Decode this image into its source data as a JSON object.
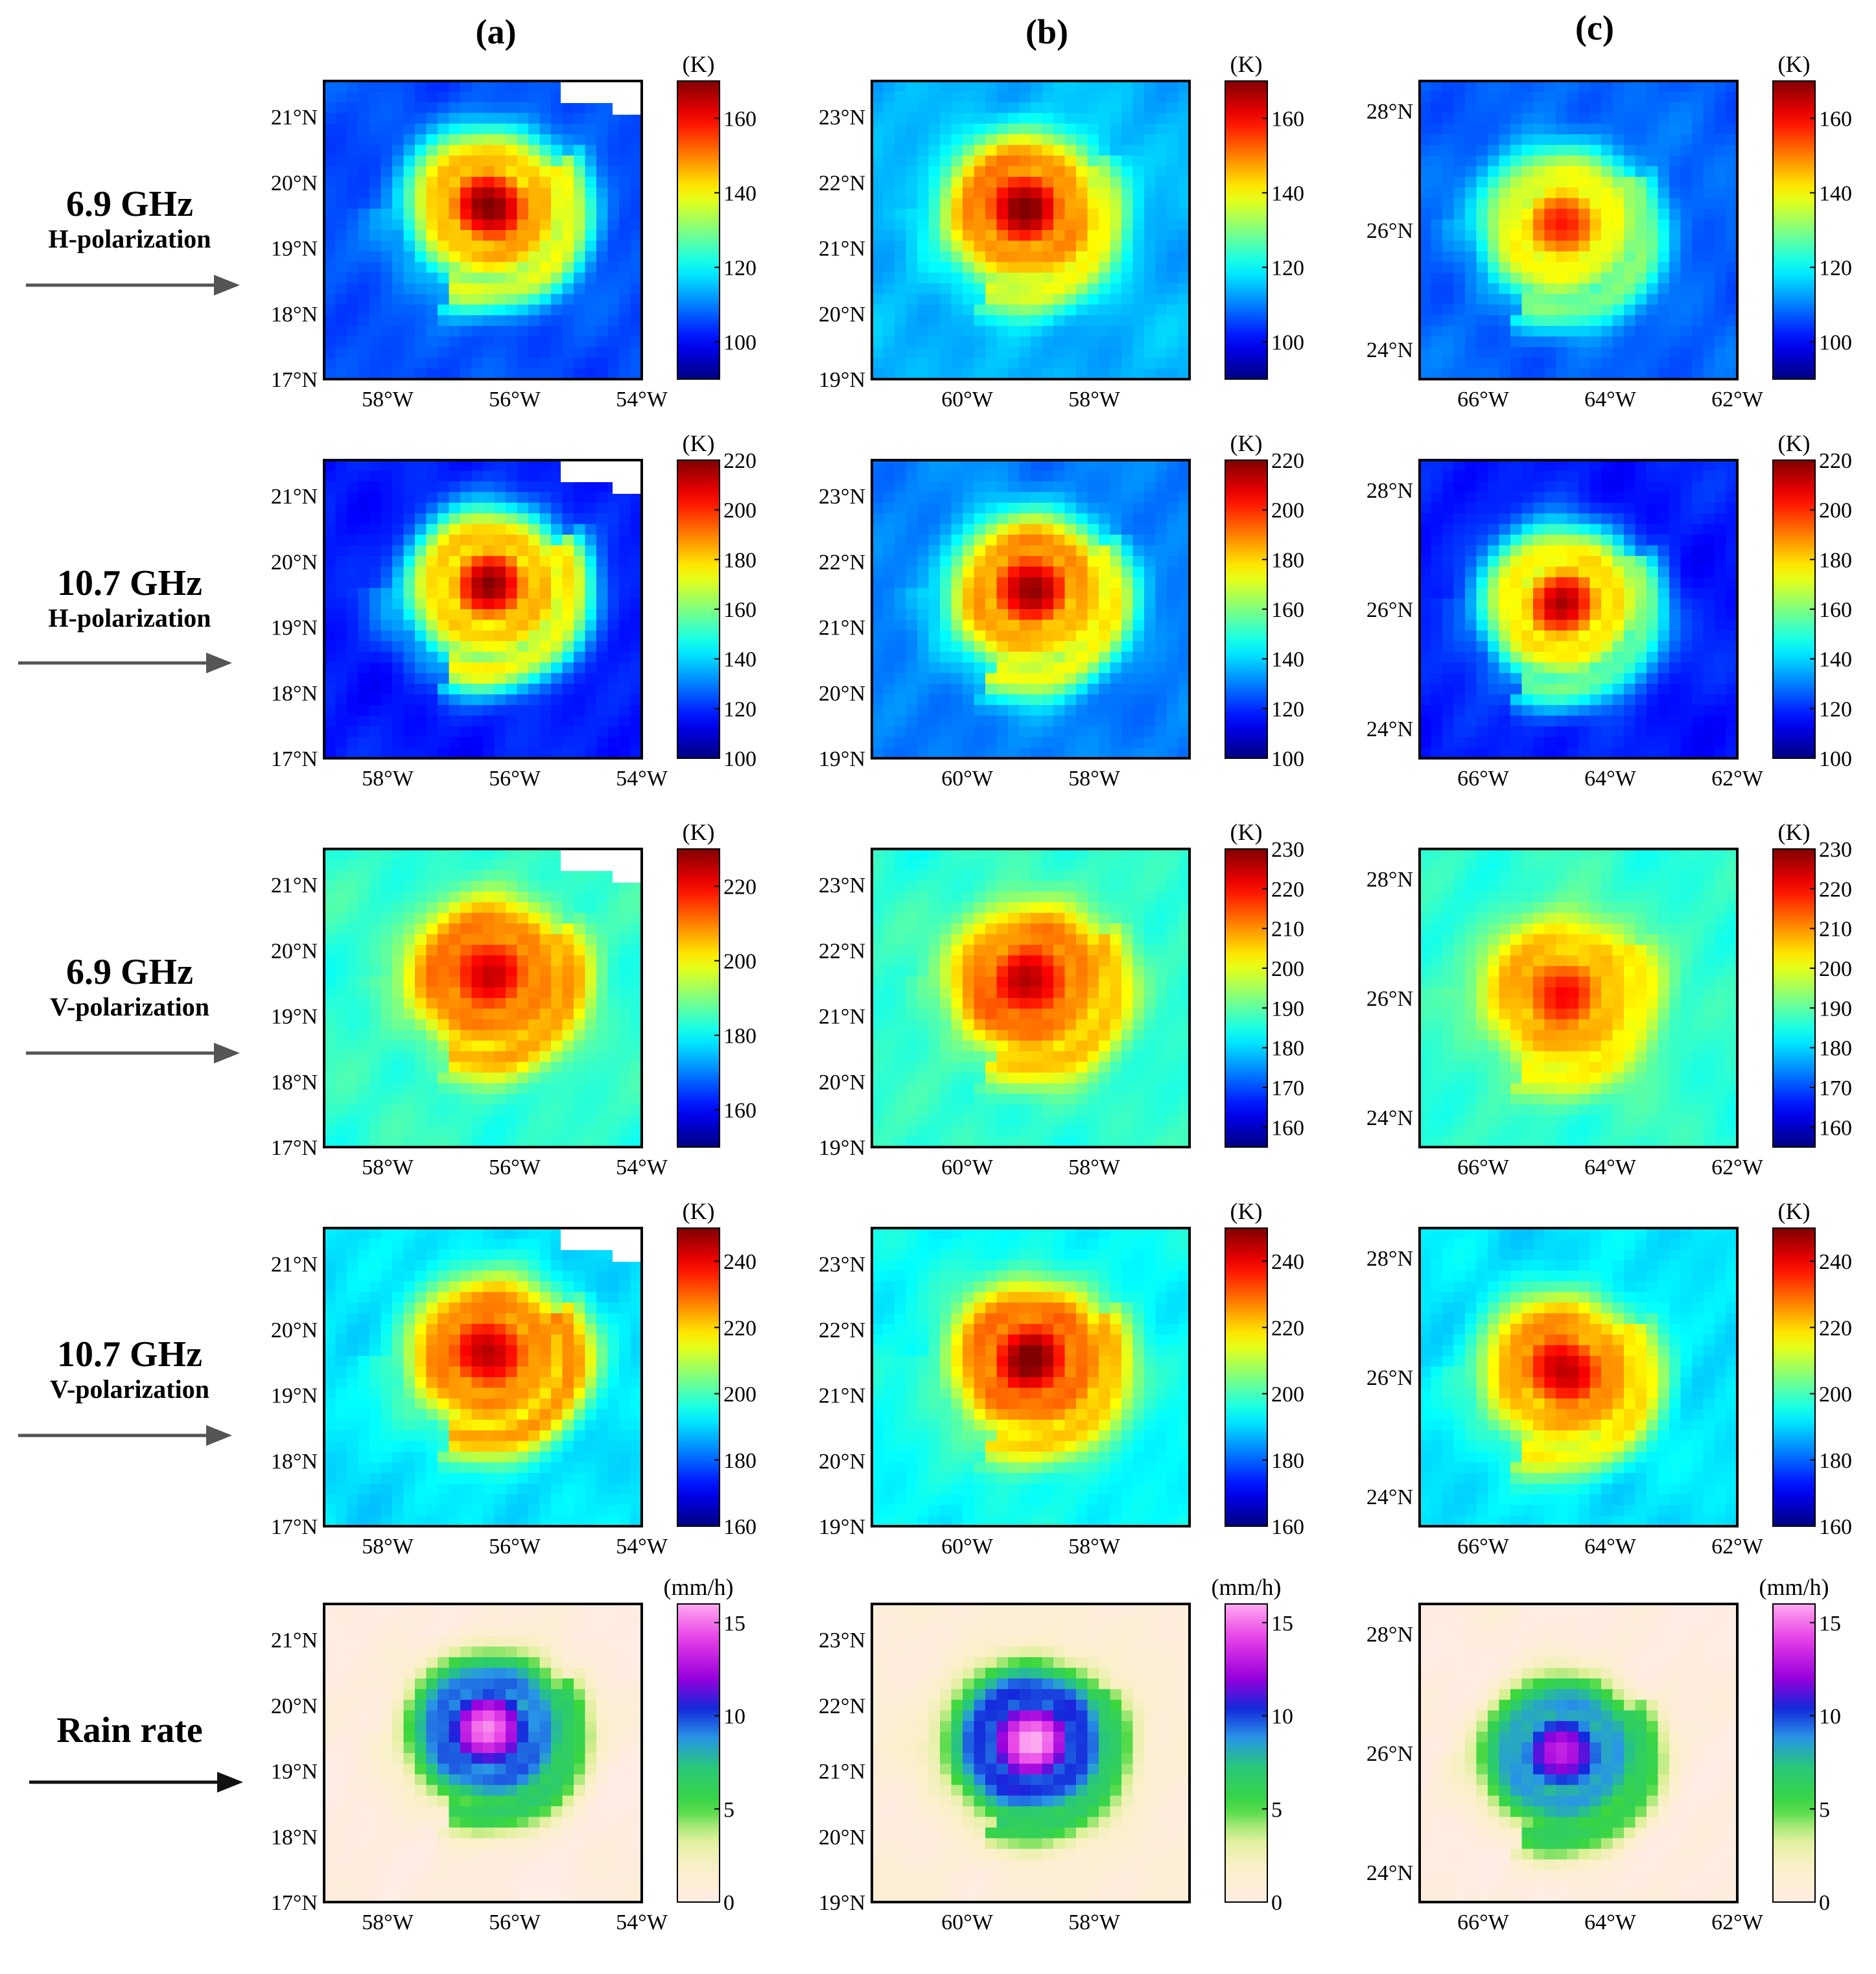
{
  "figure": {
    "columns": [
      "(a)",
      "(b)",
      "(c)"
    ],
    "rows": [
      {
        "title": "6.9 GHz",
        "subtitle": "H-polarization"
      },
      {
        "title": "10.7 GHz",
        "subtitle": "H-polarization"
      },
      {
        "title": "6.9 GHz",
        "subtitle": "V-polarization"
      },
      {
        "title": "10.7 GHz",
        "subtitle": "V-polarization"
      },
      {
        "title": "Rain rate",
        "subtitle": ""
      }
    ]
  },
  "chart_data": [
    {
      "id": "a1",
      "type": "heatmap",
      "column": "(a)",
      "row_title": "6.9 GHz",
      "row_subtitle": "H-polarization",
      "colorbar_unit": "(K)",
      "colorbar_range": [
        90,
        170
      ],
      "colorbar_ticks": [
        "100",
        "120",
        "140",
        "160"
      ],
      "colorbar_tick_values": [
        100,
        120,
        140,
        160
      ],
      "x_ticks": [
        "58°W",
        "56°W",
        "54°W"
      ],
      "y_ticks": [
        "17°N",
        "18°N",
        "19°N",
        "20°N",
        "21°N"
      ],
      "colormap": "jet",
      "storm": {
        "cx": 0.52,
        "cy": 0.42,
        "core": 1.0,
        "arm": 0.75,
        "base": 0.2,
        "extent": 0.42,
        "missing_corner": true
      }
    },
    {
      "id": "b1",
      "type": "heatmap",
      "column": "(b)",
      "row_title": "6.9 GHz",
      "row_subtitle": "H-polarization",
      "colorbar_unit": "(K)",
      "colorbar_range": [
        90,
        170
      ],
      "colorbar_ticks": [
        "100",
        "120",
        "140",
        "160"
      ],
      "colorbar_tick_values": [
        100,
        120,
        140,
        160
      ],
      "x_ticks": [
        "60°W",
        "58°W"
      ],
      "y_ticks": [
        "19°N",
        "20°N",
        "21°N",
        "22°N",
        "23°N"
      ],
      "colormap": "jet",
      "storm": {
        "cx": 0.48,
        "cy": 0.43,
        "core": 1.0,
        "arm": 0.62,
        "base": 0.3,
        "extent": 0.45,
        "missing_corner": false
      }
    },
    {
      "id": "c1",
      "type": "heatmap",
      "column": "(c)",
      "row_title": "6.9 GHz",
      "row_subtitle": "H-polarization",
      "colorbar_unit": "(K)",
      "colorbar_range": [
        90,
        170
      ],
      "colorbar_ticks": [
        "100",
        "120",
        "140",
        "160"
      ],
      "colorbar_tick_values": [
        100,
        120,
        140,
        160
      ],
      "x_ticks": [
        "66°W",
        "64°W",
        "62°W"
      ],
      "y_ticks": [
        "24°N",
        "26°N",
        "28°N"
      ],
      "colormap": "jet",
      "storm": {
        "cx": 0.45,
        "cy": 0.48,
        "core": 0.82,
        "arm": 0.55,
        "base": 0.22,
        "extent": 0.4,
        "missing_corner": false
      }
    },
    {
      "id": "a2",
      "type": "heatmap",
      "column": "(a)",
      "row_title": "10.7 GHz",
      "row_subtitle": "H-polarization",
      "colorbar_unit": "(K)",
      "colorbar_range": [
        100,
        220
      ],
      "colorbar_ticks": [
        "100",
        "120",
        "140",
        "160",
        "180",
        "200",
        "220"
      ],
      "colorbar_tick_values": [
        100,
        120,
        140,
        160,
        180,
        200,
        220
      ],
      "x_ticks": [
        "58°W",
        "56°W",
        "54°W"
      ],
      "y_ticks": [
        "17°N",
        "18°N",
        "19°N",
        "20°N",
        "21°N"
      ],
      "colormap": "jet",
      "storm": {
        "cx": 0.52,
        "cy": 0.42,
        "core": 1.0,
        "arm": 0.8,
        "base": 0.15,
        "extent": 0.45,
        "missing_corner": true
      }
    },
    {
      "id": "b2",
      "type": "heatmap",
      "column": "(b)",
      "row_title": "10.7 GHz",
      "row_subtitle": "H-polarization",
      "colorbar_unit": "(K)",
      "colorbar_range": [
        100,
        220
      ],
      "colorbar_ticks": [
        "100",
        "120",
        "140",
        "160",
        "180",
        "200",
        "220"
      ],
      "colorbar_tick_values": [
        100,
        120,
        140,
        160,
        180,
        200,
        220
      ],
      "x_ticks": [
        "60°W",
        "58°W"
      ],
      "y_ticks": [
        "19°N",
        "20°N",
        "21°N",
        "22°N",
        "23°N"
      ],
      "colormap": "jet",
      "storm": {
        "cx": 0.5,
        "cy": 0.44,
        "core": 1.0,
        "arm": 0.7,
        "base": 0.25,
        "extent": 0.45,
        "missing_corner": false
      }
    },
    {
      "id": "c2",
      "type": "heatmap",
      "column": "(c)",
      "row_title": "10.7 GHz",
      "row_subtitle": "H-polarization",
      "colorbar_unit": "(K)",
      "colorbar_range": [
        100,
        220
      ],
      "colorbar_ticks": [
        "100",
        "120",
        "140",
        "160",
        "180",
        "200",
        "220"
      ],
      "colorbar_tick_values": [
        100,
        120,
        140,
        160,
        180,
        200,
        220
      ],
      "x_ticks": [
        "66°W",
        "64°W",
        "62°W"
      ],
      "y_ticks": [
        "24°N",
        "26°N",
        "28°N"
      ],
      "colormap": "jet",
      "storm": {
        "cx": 0.45,
        "cy": 0.48,
        "core": 0.95,
        "arm": 0.6,
        "base": 0.15,
        "extent": 0.4,
        "missing_corner": false
      }
    },
    {
      "id": "a3",
      "type": "heatmap",
      "column": "(a)",
      "row_title": "6.9 GHz",
      "row_subtitle": "V-polarization",
      "colorbar_unit": "(K)",
      "colorbar_range": [
        150,
        230
      ],
      "colorbar_ticks": [
        "160",
        "180",
        "200",
        "220"
      ],
      "colorbar_tick_values": [
        160,
        180,
        200,
        220
      ],
      "x_ticks": [
        "58°W",
        "56°W",
        "54°W"
      ],
      "y_ticks": [
        "17°N",
        "18°N",
        "19°N",
        "20°N",
        "21°N"
      ],
      "colormap": "jet",
      "storm": {
        "cx": 0.52,
        "cy": 0.42,
        "core": 0.9,
        "arm": 0.7,
        "base": 0.42,
        "extent": 0.45,
        "missing_corner": true
      }
    },
    {
      "id": "b3",
      "type": "heatmap",
      "column": "(b)",
      "row_title": "6.9 GHz",
      "row_subtitle": "V-polarization",
      "colorbar_unit": "(K)",
      "colorbar_range": [
        155,
        230
      ],
      "colorbar_ticks": [
        "160",
        "170",
        "180",
        "190",
        "200",
        "210",
        "220",
        "230"
      ],
      "colorbar_tick_values": [
        160,
        170,
        180,
        190,
        200,
        210,
        220,
        230
      ],
      "x_ticks": [
        "60°W",
        "58°W"
      ],
      "y_ticks": [
        "19°N",
        "20°N",
        "21°N",
        "22°N",
        "23°N"
      ],
      "colormap": "jet",
      "storm": {
        "cx": 0.5,
        "cy": 0.44,
        "core": 0.92,
        "arm": 0.66,
        "base": 0.42,
        "extent": 0.45,
        "missing_corner": false
      }
    },
    {
      "id": "c3",
      "type": "heatmap",
      "column": "(c)",
      "row_title": "6.9 GHz",
      "row_subtitle": "V-polarization",
      "colorbar_unit": "(K)",
      "colorbar_range": [
        155,
        230
      ],
      "colorbar_ticks": [
        "160",
        "170",
        "180",
        "190",
        "200",
        "210",
        "220",
        "230"
      ],
      "colorbar_tick_values": [
        160,
        170,
        180,
        190,
        200,
        210,
        220,
        230
      ],
      "x_ticks": [
        "66°W",
        "64°W",
        "62°W"
      ],
      "y_ticks": [
        "24°N",
        "26°N",
        "28°N"
      ],
      "colormap": "jet",
      "storm": {
        "cx": 0.45,
        "cy": 0.48,
        "core": 0.78,
        "arm": 0.55,
        "base": 0.42,
        "extent": 0.4,
        "missing_corner": false
      }
    },
    {
      "id": "a4",
      "type": "heatmap",
      "column": "(a)",
      "row_title": "10.7 GHz",
      "row_subtitle": "V-polarization",
      "colorbar_unit": "(K)",
      "colorbar_range": [
        160,
        250
      ],
      "colorbar_ticks": [
        "160",
        "180",
        "200",
        "220",
        "240"
      ],
      "colorbar_tick_values": [
        160,
        180,
        200,
        220,
        240
      ],
      "x_ticks": [
        "58°W",
        "56°W",
        "54°W"
      ],
      "y_ticks": [
        "17°N",
        "18°N",
        "19°N",
        "20°N",
        "21°N"
      ],
      "colormap": "jet",
      "storm": {
        "cx": 0.52,
        "cy": 0.42,
        "core": 0.95,
        "arm": 0.8,
        "base": 0.35,
        "extent": 0.47,
        "missing_corner": true
      }
    },
    {
      "id": "b4",
      "type": "heatmap",
      "column": "(b)",
      "row_title": "10.7 GHz",
      "row_subtitle": "V-polarization",
      "colorbar_unit": "(K)",
      "colorbar_range": [
        160,
        250
      ],
      "colorbar_ticks": [
        "160",
        "180",
        "200",
        "220",
        "240"
      ],
      "colorbar_tick_values": [
        160,
        180,
        200,
        220,
        240
      ],
      "x_ticks": [
        "60°W",
        "58°W"
      ],
      "y_ticks": [
        "19°N",
        "20°N",
        "21°N",
        "22°N",
        "23°N"
      ],
      "colormap": "jet",
      "storm": {
        "cx": 0.5,
        "cy": 0.44,
        "core": 1.0,
        "arm": 0.72,
        "base": 0.38,
        "extent": 0.46,
        "missing_corner": false
      }
    },
    {
      "id": "c4",
      "type": "heatmap",
      "column": "(c)",
      "row_title": "10.7 GHz",
      "row_subtitle": "V-polarization",
      "colorbar_unit": "(K)",
      "colorbar_range": [
        160,
        250
      ],
      "colorbar_ticks": [
        "160",
        "180",
        "200",
        "220",
        "240"
      ],
      "colorbar_tick_values": [
        160,
        180,
        200,
        220,
        240
      ],
      "x_ticks": [
        "66°W",
        "64°W",
        "62°W"
      ],
      "y_ticks": [
        "24°N",
        "26°N",
        "28°N"
      ],
      "colormap": "jet",
      "storm": {
        "cx": 0.45,
        "cy": 0.48,
        "core": 0.92,
        "arm": 0.65,
        "base": 0.35,
        "extent": 0.42,
        "missing_corner": false
      }
    },
    {
      "id": "a5",
      "type": "heatmap",
      "column": "(a)",
      "row_title": "Rain rate",
      "row_subtitle": "",
      "colorbar_unit": "(mm/h)",
      "colorbar_range": [
        0,
        16
      ],
      "colorbar_ticks": [
        "0",
        "5",
        "10",
        "15"
      ],
      "colorbar_tick_values": [
        0,
        5,
        10,
        15
      ],
      "x_ticks": [
        "58°W",
        "56°W",
        "54°W"
      ],
      "y_ticks": [
        "17°N",
        "18°N",
        "19°N",
        "20°N",
        "21°N"
      ],
      "colormap": "rain",
      "storm": {
        "cx": 0.52,
        "cy": 0.42,
        "core": 0.95,
        "arm": 0.6,
        "base": 0.02,
        "extent": 0.4,
        "missing_corner": false
      }
    },
    {
      "id": "b5",
      "type": "heatmap",
      "column": "(b)",
      "row_title": "Rain rate",
      "row_subtitle": "",
      "colorbar_unit": "(mm/h)",
      "colorbar_range": [
        0,
        16
      ],
      "colorbar_ticks": [
        "0",
        "5",
        "10",
        "15"
      ],
      "colorbar_tick_values": [
        0,
        5,
        10,
        15
      ],
      "x_ticks": [
        "60°W",
        "58°W"
      ],
      "y_ticks": [
        "19°N",
        "20°N",
        "21°N",
        "22°N",
        "23°N"
      ],
      "colormap": "rain",
      "storm": {
        "cx": 0.5,
        "cy": 0.46,
        "core": 1.0,
        "arm": 0.55,
        "base": 0.05,
        "extent": 0.45,
        "missing_corner": false
      }
    },
    {
      "id": "c5",
      "type": "heatmap",
      "column": "(c)",
      "row_title": "Rain rate",
      "row_subtitle": "",
      "colorbar_unit": "(mm/h)",
      "colorbar_range": [
        0,
        16
      ],
      "colorbar_ticks": [
        "0",
        "5",
        "10",
        "15"
      ],
      "colorbar_tick_values": [
        0,
        5,
        10,
        15
      ],
      "x_ticks": [
        "66°W",
        "64°W",
        "62°W"
      ],
      "y_ticks": [
        "24°N",
        "26°N",
        "28°N"
      ],
      "colormap": "rain",
      "storm": {
        "cx": 0.45,
        "cy": 0.5,
        "core": 0.85,
        "arm": 0.55,
        "base": 0.02,
        "extent": 0.4,
        "missing_corner": false
      }
    }
  ]
}
